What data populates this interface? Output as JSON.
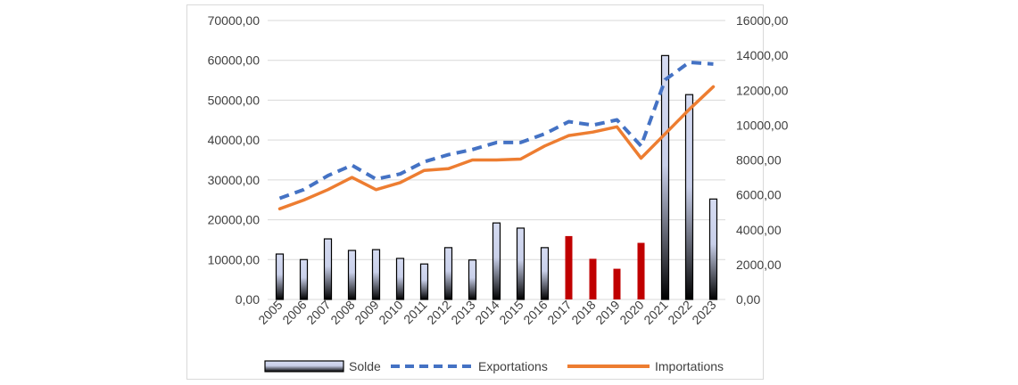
{
  "chart_data": {
    "type": "bar+line",
    "categories": [
      "2005",
      "2006",
      "2007",
      "2008",
      "2009",
      "2010",
      "2011",
      "2012",
      "2013",
      "2014",
      "2015",
      "2016",
      "2017",
      "2018",
      "2019",
      "2020",
      "2021",
      "2022",
      "2023"
    ],
    "series": [
      {
        "name": "Solde",
        "type": "bar",
        "axis": "left",
        "values": [
          11400,
          10000,
          15200,
          12300,
          12500,
          10300,
          8900,
          13000,
          9900,
          19200,
          17900,
          13000,
          15900,
          10200,
          7700,
          14200,
          61200,
          51400,
          25200
        ],
        "negative_years": [
          "2017",
          "2018",
          "2019",
          "2020"
        ]
      },
      {
        "name": "Exportations",
        "type": "line",
        "style": "dashed",
        "axis": "right",
        "values": [
          5800,
          6300,
          7100,
          7700,
          6900,
          7200,
          7900,
          8300,
          8600,
          9000,
          9000,
          9500,
          10200,
          10000,
          10300,
          8800,
          12600,
          13600,
          13500
        ]
      },
      {
        "name": "Importations",
        "type": "line",
        "style": "solid",
        "axis": "right",
        "values": [
          5200,
          5700,
          6300,
          7000,
          6300,
          6700,
          7400,
          7500,
          8000,
          8000,
          8050,
          8800,
          9400,
          9600,
          9900,
          8100,
          9500,
          10900,
          12200
        ]
      }
    ],
    "left_axis": {
      "min": 0,
      "max": 70000,
      "step": 10000,
      "tick_labels": [
        "0,00",
        "10000,00",
        "20000,00",
        "30000,00",
        "40000,00",
        "50000,00",
        "60000,00",
        "70000,00"
      ]
    },
    "right_axis": {
      "min": 0,
      "max": 16000,
      "step": 2000,
      "tick_labels": [
        "0,00",
        "2000,00",
        "4000,00",
        "6000,00",
        "8000,00",
        "10000,00",
        "12000,00",
        "14000,00",
        "16000,00"
      ]
    },
    "legend": {
      "placement": "bottom",
      "entries": [
        "Solde",
        "Exportations",
        "Importations"
      ]
    },
    "grid": true,
    "colors": {
      "bar_top": "#d6dcf2",
      "bar_bottom": "#000000",
      "bar_negative": "#c00000",
      "exportations": "#4472c4",
      "importations": "#ed7d31",
      "grid": "#d9d9d9",
      "text": "#404040"
    }
  }
}
